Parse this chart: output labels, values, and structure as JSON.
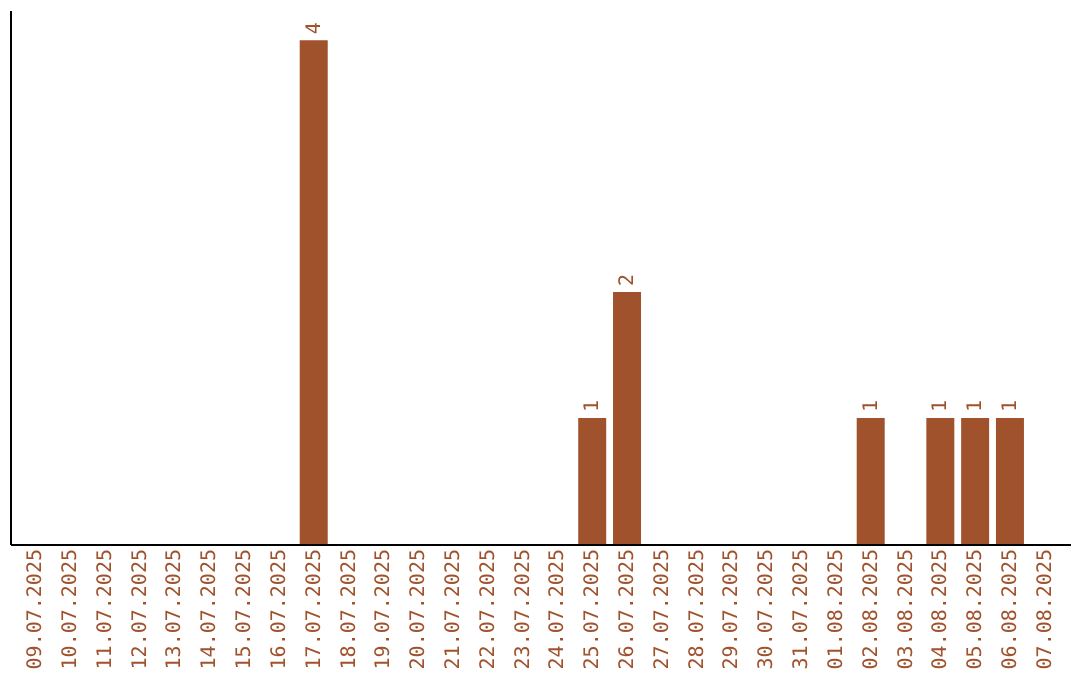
{
  "chart_data": {
    "type": "bar",
    "categories": [
      "09.07.2025",
      "10.07.2025",
      "11.07.2025",
      "12.07.2025",
      "13.07.2025",
      "14.07.2025",
      "15.07.2025",
      "16.07.2025",
      "17.07.2025",
      "18.07.2025",
      "19.07.2025",
      "20.07.2025",
      "21.07.2025",
      "22.07.2025",
      "23.07.2025",
      "24.07.2025",
      "25.07.2025",
      "26.07.2025",
      "27.07.2025",
      "28.07.2025",
      "29.07.2025",
      "30.07.2025",
      "31.07.2025",
      "01.08.2025",
      "02.08.2025",
      "03.08.2025",
      "04.08.2025",
      "05.08.2025",
      "06.08.2025",
      "07.08.2025"
    ],
    "values": [
      0,
      0,
      0,
      0,
      0,
      0,
      0,
      0,
      4,
      0,
      0,
      0,
      0,
      0,
      0,
      0,
      1,
      2,
      0,
      0,
      0,
      0,
      0,
      0,
      1,
      0,
      1,
      1,
      1,
      0
    ],
    "value_labels": [
      null,
      null,
      null,
      null,
      null,
      null,
      null,
      null,
      "4",
      null,
      null,
      null,
      null,
      null,
      null,
      null,
      "1",
      "2",
      null,
      null,
      null,
      null,
      null,
      null,
      "1",
      null,
      "1",
      "1",
      "1",
      null
    ],
    "color": "#a0522d",
    "grid": false,
    "tick_labels": "x"
  }
}
